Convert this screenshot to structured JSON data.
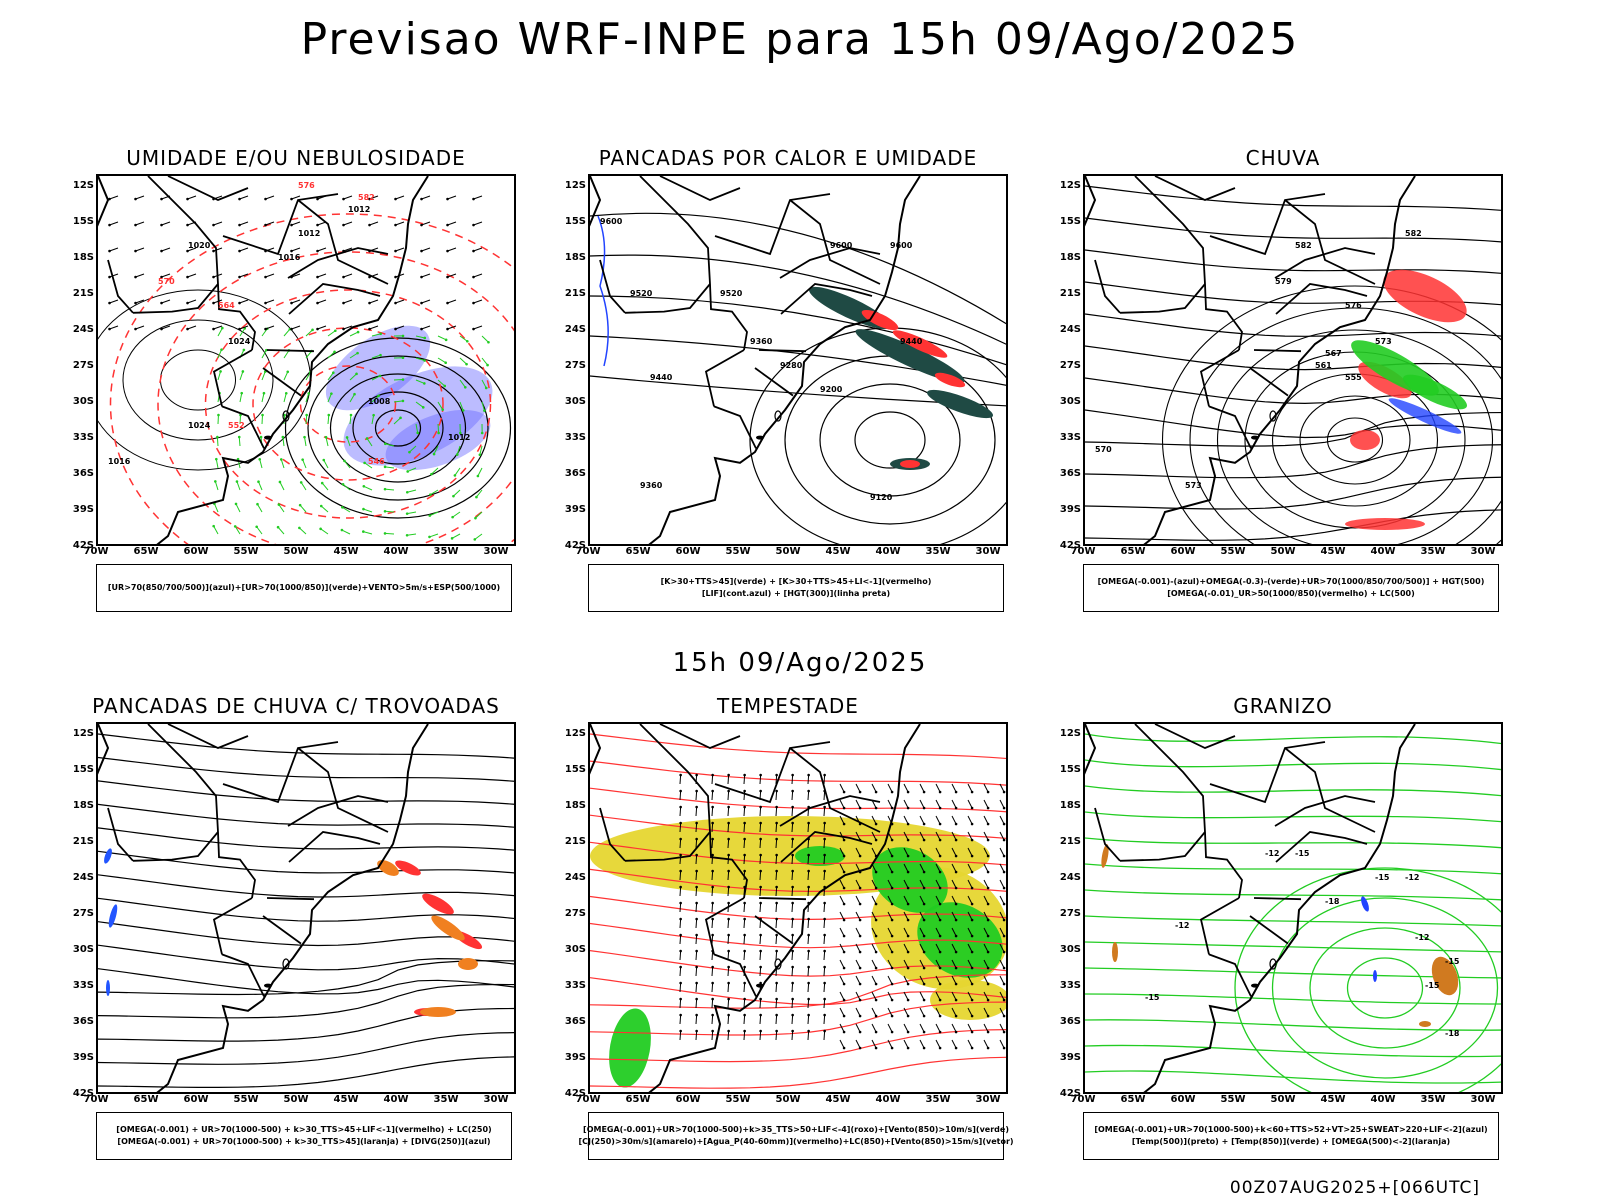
{
  "header": {
    "title": "Previsao WRF-INPE  para 15h 09/Ago/2025",
    "mid_title": "15h 09/Ago/2025",
    "footer_stamp": "00Z07AUG2025+[066UTC]"
  },
  "axes": {
    "lat_labels": [
      "12S",
      "15S",
      "18S",
      "21S",
      "24S",
      "27S",
      "30S",
      "33S",
      "36S",
      "39S",
      "42S"
    ],
    "lon_labels": [
      "70W",
      "65W",
      "60W",
      "55W",
      "50W",
      "45W",
      "40W",
      "35W",
      "30W"
    ]
  },
  "panels": [
    {
      "title": "UMIDADE E/OU NEBULOSIDADE",
      "legend": [
        "[UR>70(850/700/500)](azul)+[UR>70(1000/850)](verde)+VENTO>5m/s+ESP(500/1000)"
      ],
      "contour_labels": [
        "1012",
        "1012",
        "1016",
        "1020",
        "1024",
        "1024",
        "1016",
        "1012",
        "1008",
        "564",
        "570",
        "576",
        "582",
        "552",
        "546"
      ],
      "colors": {
        "humid_high": "#6b6bff",
        "humid_low": "#22cc22",
        "thickness": "#ff3333"
      }
    },
    {
      "title": "PANCADAS POR CALOR E UMIDADE",
      "legend": [
        "[K>30+TTS>45](verde) + [K>30+TTS>45+LI<-1](vermelho)",
        "[LIF](cont.azul) + [HGT(300)](linha preta)"
      ],
      "contour_labels": [
        "9600",
        "9600",
        "9600",
        "9520",
        "9520",
        "9440",
        "9360",
        "9280",
        "9200",
        "9120",
        "9360",
        "9440"
      ],
      "colors": {
        "k_tts": "#1f4a44",
        "k_tts_li": "#ff3333",
        "lif": "#2244ff"
      }
    },
    {
      "title": "CHUVA",
      "legend": [
        "[OMEGA(-0.001)-(azul)+OMEGA(-0.3)-(verde)+UR>70(1000/850/700/500)] + HGT(500)",
        "[OMEGA(-0.01)_UR>50(1000/850)(vermelho) + LC(500)"
      ],
      "contour_labels": [
        "582",
        "582",
        "579",
        "576",
        "573",
        "567",
        "561",
        "555",
        "573",
        "570"
      ],
      "colors": {
        "omega_weak": "#2244ff",
        "omega_strong": "#22cc22",
        "omega_ur": "#ff3333"
      }
    },
    {
      "title": "PANCADAS DE CHUVA C/ TROVOADAS",
      "legend": [
        "[OMEGA(-0.001) + UR>70(1000-500) + k>30_TTS>45+LIF<-1](vermelho) + LC(250)",
        "[OMEGA(-0.001) + UR>70(1000-500) + k>30_TTS>45](laranja) + [DIVG(250)](azul)"
      ],
      "contour_labels": [],
      "colors": {
        "red": "#ff3333",
        "orange": "#f08020",
        "blue": "#2255ff"
      }
    },
    {
      "title": "TEMPESTADE",
      "legend": [
        "[OMEGA(-0.001)+UR>70(1000-500)+k>35_TTS>50+LIF<-4](roxo)+[Vento(850)>10m/s](verde)",
        "[CJ(250)>30m/s](amarelo)+[Agua_P(40-60mm)](vermelho)+LC(850)+[Vento(850)>15m/s](vetor)"
      ],
      "contour_labels": [],
      "colors": {
        "jet": "#e6d630",
        "wind": "#22cc22",
        "streamline": "#ff3333"
      }
    },
    {
      "title": "GRANIZO",
      "legend": [
        "[OMEGA(-0.001)+UR>70(1000-500)+k<60+TTS>52+VT>25+SWEAT>220+LIF<-2](azul)",
        "[Temp(500)](preto) + [Temp(850)](verde) + [OMEGA(500)<-2](laranja)"
      ],
      "contour_labels": [
        "-12",
        "-15",
        "-18",
        "-15",
        "-12",
        "-15",
        "-15",
        "-12",
        "-12",
        "-15",
        "-18"
      ],
      "colors": {
        "temp850": "#22cc22",
        "omega500": "#d07a20",
        "hail": "#2244ff"
      }
    }
  ]
}
